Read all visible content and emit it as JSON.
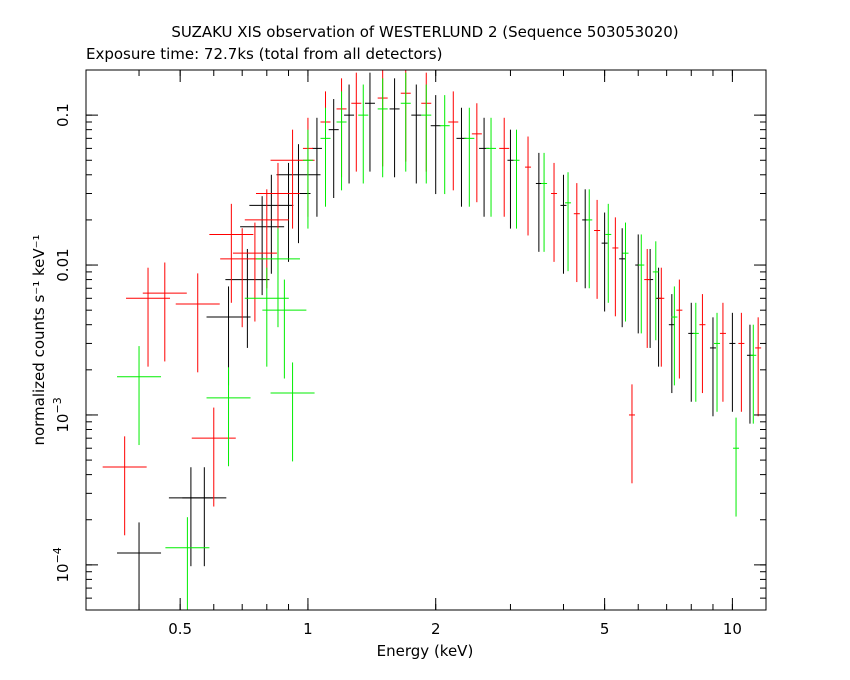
{
  "chart_data": {
    "type": "scatter",
    "title": "SUZAKU XIS observation of WESTERLUND 2 (Sequence 503053020)",
    "subtitle": "Exposure time: 72.7ks (total from all detectors)",
    "xlabel": "Energy (keV)",
    "ylabel": "normalized counts s⁻¹ keV⁻¹",
    "xscale": "log",
    "yscale": "log",
    "xlim": [
      0.3,
      12.0
    ],
    "ylim": [
      5e-05,
      0.2
    ],
    "xticks": [
      {
        "value": 0.5,
        "label": "0.5"
      },
      {
        "value": 1,
        "label": "1"
      },
      {
        "value": 2,
        "label": "2"
      },
      {
        "value": 5,
        "label": "5"
      },
      {
        "value": 10,
        "label": "10"
      }
    ],
    "yticks": [
      {
        "value": 0.1,
        "label": "0.1"
      },
      {
        "value": 0.01,
        "label": "0.01"
      },
      {
        "value": 0.001,
        "label": "10",
        "exp": "−3"
      },
      {
        "value": 0.0001,
        "label": "10",
        "exp": "−4"
      }
    ],
    "grid": false,
    "series": [
      {
        "color": "#000000",
        "x": [
          0.4,
          0.53,
          0.57,
          0.65,
          0.72,
          0.78,
          0.82,
          0.9,
          0.95,
          1.05,
          1.15,
          1.25,
          1.4,
          1.6,
          1.8,
          2.0,
          2.3,
          2.6,
          3.0,
          3.5,
          4.0,
          4.5,
          5.0,
          5.5,
          6.0,
          6.4,
          6.7,
          7.2,
          8.0,
          9.0,
          10.0,
          11.0
        ],
        "y": [
          0.00012,
          0.00028,
          0.00028,
          0.0045,
          0.008,
          0.018,
          0.025,
          0.03,
          0.04,
          0.06,
          0.08,
          0.1,
          0.12,
          0.11,
          0.1,
          0.085,
          0.07,
          0.06,
          0.05,
          0.035,
          0.025,
          0.02,
          0.014,
          0.011,
          0.01,
          0.008,
          0.006,
          0.004,
          0.0035,
          0.0028,
          0.003,
          0.0025
        ]
      },
      {
        "color": "#ff0000",
        "x": [
          0.37,
          0.42,
          0.46,
          0.55,
          0.6,
          0.66,
          0.7,
          0.75,
          0.8,
          0.85,
          0.92,
          1.0,
          1.1,
          1.2,
          1.3,
          1.5,
          1.7,
          1.9,
          2.2,
          2.5,
          2.9,
          3.3,
          3.8,
          4.3,
          4.8,
          5.3,
          5.8,
          6.3,
          6.8,
          7.5,
          8.5,
          9.5,
          10.5,
          11.5
        ],
        "y": [
          0.00045,
          0.006,
          0.0065,
          0.0055,
          0.0007,
          0.016,
          0.011,
          0.012,
          0.02,
          0.03,
          0.05,
          0.06,
          0.09,
          0.11,
          0.12,
          0.13,
          0.14,
          0.12,
          0.09,
          0.075,
          0.06,
          0.045,
          0.03,
          0.022,
          0.017,
          0.013,
          0.001,
          0.008,
          0.006,
          0.005,
          0.004,
          0.0035,
          0.003,
          0.0028
        ]
      },
      {
        "color": "#00ee00",
        "x": [
          0.4,
          0.52,
          0.65,
          0.8,
          0.85,
          0.88,
          0.92,
          1.0,
          1.1,
          1.2,
          1.35,
          1.5,
          1.7,
          1.9,
          2.1,
          2.4,
          2.7,
          3.1,
          3.6,
          4.1,
          4.6,
          5.1,
          5.6,
          6.1,
          6.6,
          7.3,
          8.2,
          9.2,
          10.2,
          11.2
        ],
        "y": [
          0.0018,
          0.00013,
          0.0013,
          0.006,
          0.011,
          0.005,
          0.0014,
          0.05,
          0.07,
          0.09,
          0.1,
          0.11,
          0.12,
          0.1,
          0.085,
          0.07,
          0.06,
          0.05,
          0.035,
          0.026,
          0.02,
          0.016,
          0.012,
          0.01,
          0.009,
          0.0045,
          0.0035,
          0.003,
          0.0006,
          0.0025
        ]
      }
    ]
  }
}
